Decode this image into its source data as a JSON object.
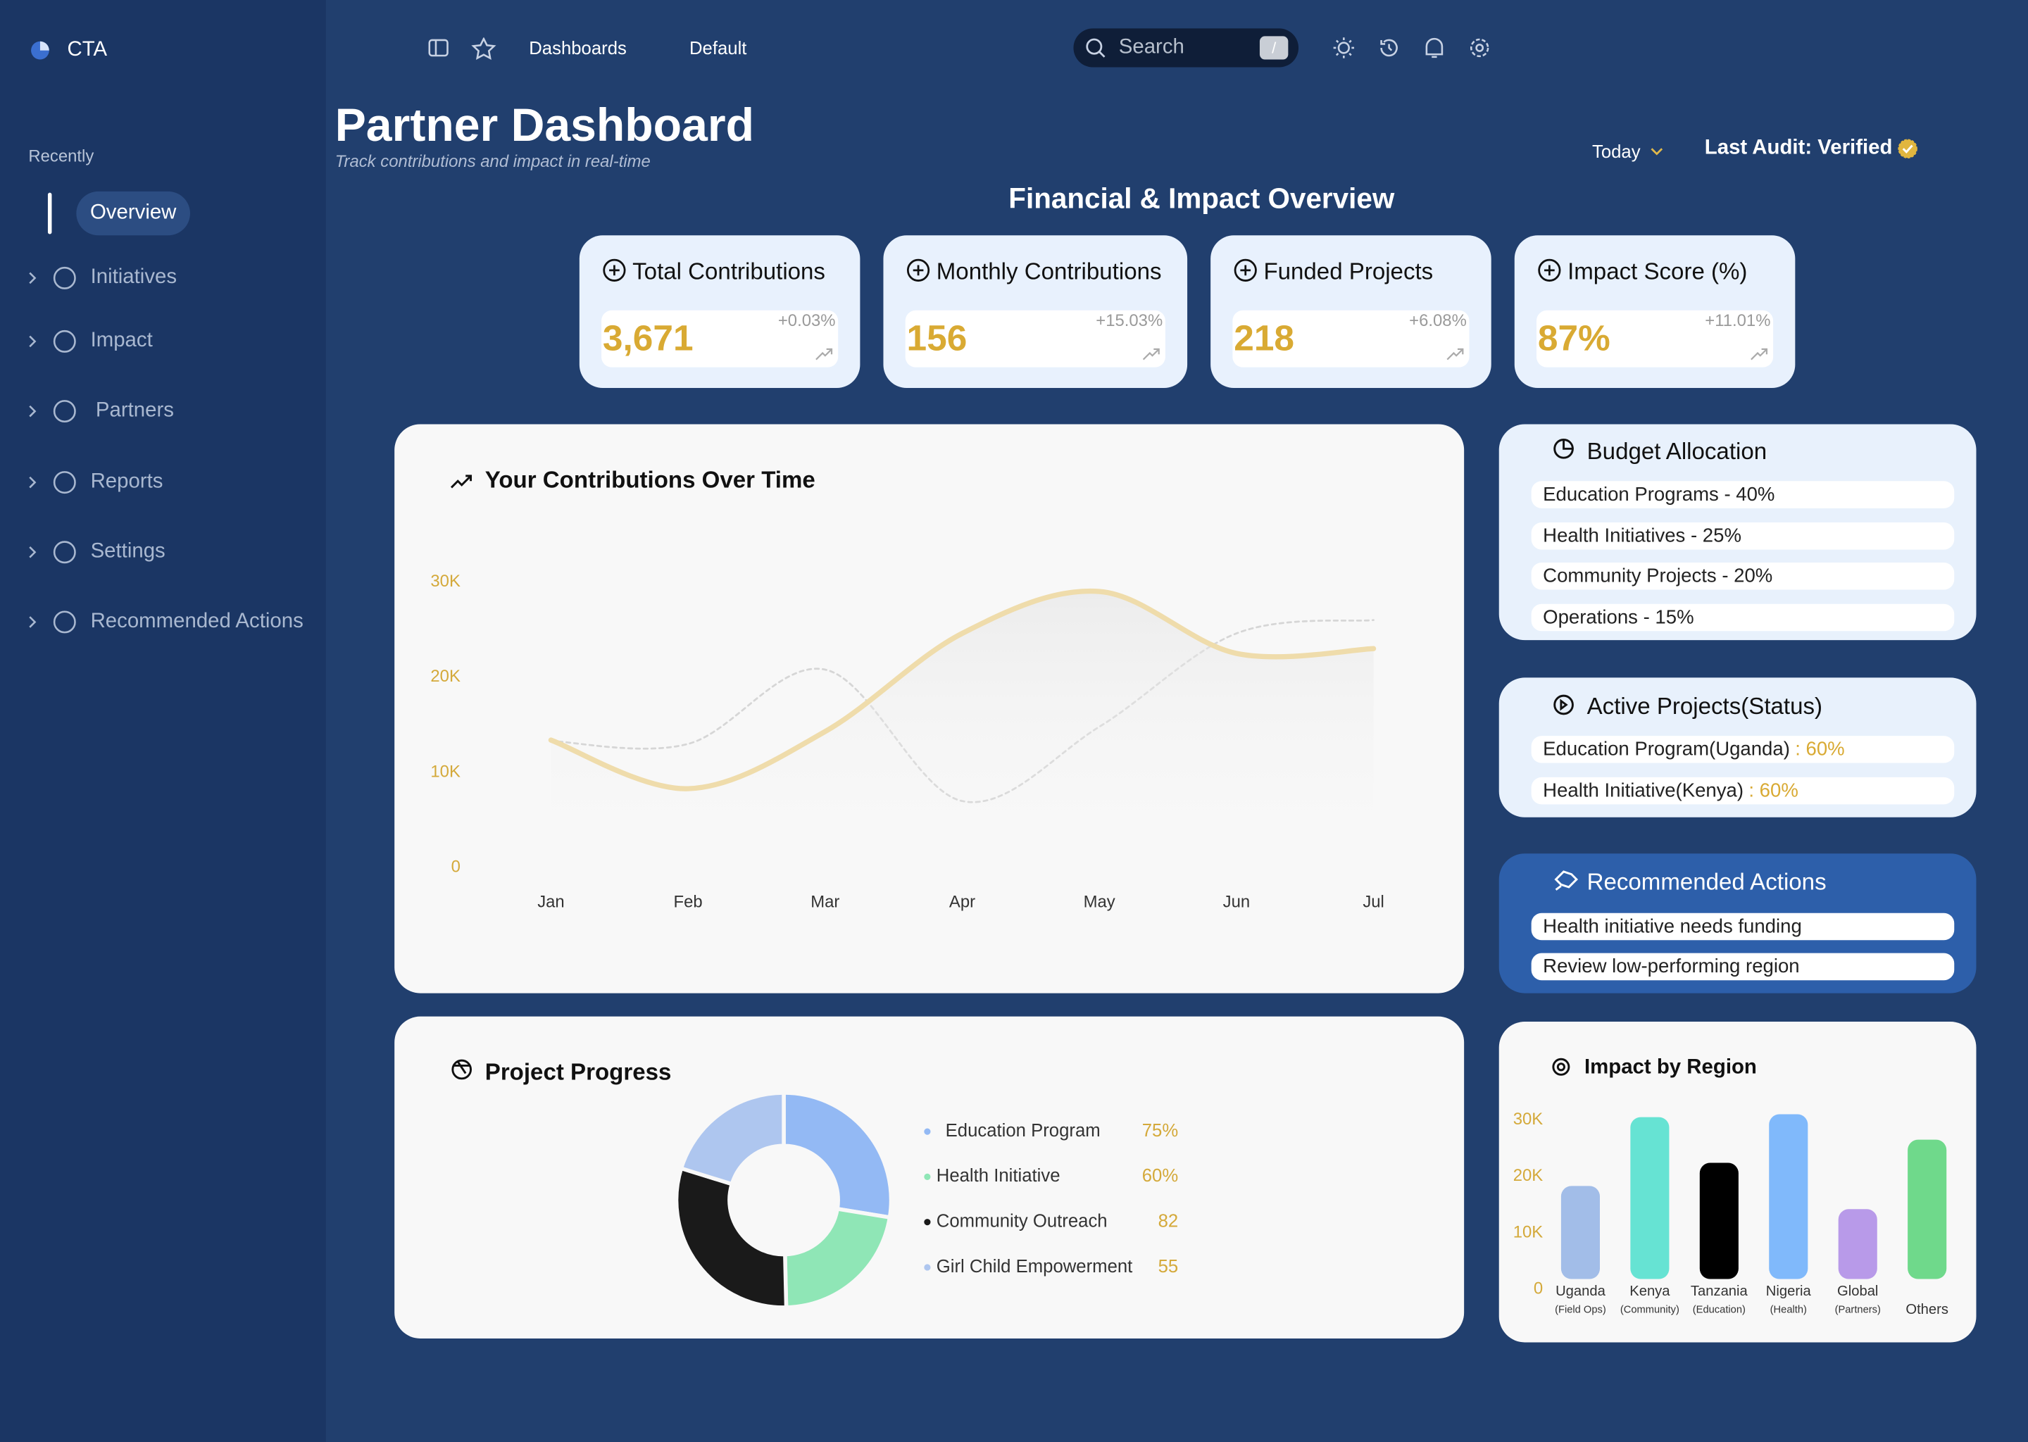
{
  "app": {
    "name": "CTA"
  },
  "sidebar": {
    "section": "Recently",
    "active": "Overview",
    "items": [
      "Initiatives",
      "Impact",
      "Partners",
      "Reports",
      "Settings",
      "Recommended Actions"
    ]
  },
  "topbar": {
    "breadcrumbs": [
      "Dashboards",
      "Default"
    ],
    "search": "Search",
    "shortcut": "/"
  },
  "header": {
    "title": "Partner Dashboard",
    "subtitle": "Track contributions and impact in real-time",
    "period": "Today",
    "audit": "Last Audit: Verified",
    "section_title": "Financial & Impact Overview"
  },
  "kpis": [
    {
      "title": "Total Contributions",
      "value": "3,671",
      "change": "+0.03%"
    },
    {
      "title": "Monthly Contributions",
      "value": "156",
      "change": "+15.03%"
    },
    {
      "title": "Funded Projects",
      "value": "218",
      "change": "+6.08%"
    },
    {
      "title": "Impact Score (%)",
      "value": "87%",
      "change": "+11.01%"
    }
  ],
  "contributions": {
    "type": "line",
    "title": "Your Contributions Over Time",
    "categories": [
      "Jan",
      "Feb",
      "Mar",
      "Apr",
      "May",
      "Jun",
      "Jul"
    ],
    "series": [
      {
        "color": "#efdcab",
        "values": [
          13400,
          8300,
          14300,
          24600,
          29000,
          22500,
          23000
        ]
      },
      {
        "color": "#d6d6d6",
        "values": [
          13300,
          13000,
          20800,
          7000,
          14800,
          24600,
          26000
        ]
      }
    ],
    "ylim": [
      0,
      32000
    ],
    "yticks": [
      0,
      {
        "value": 10000,
        "label": "10K"
      },
      {
        "value": 20000,
        "label": "20K"
      },
      {
        "value": 30000,
        "label": "30K"
      }
    ]
  },
  "budget": {
    "title": "Budget Allocation",
    "items": [
      "Education Programs - 40%",
      "Health Initiatives - 25%",
      "Community Projects - 20%",
      "Operations - 15%"
    ]
  },
  "active_projects": {
    "title": "Active Projects(Status)",
    "items": [
      {
        "name": "Education Program(Uganda)",
        "status": ": 60%"
      },
      {
        "name": "Health Initiative(Kenya)",
        "status": ": 60%"
      }
    ]
  },
  "recommended": {
    "title": "Recommended Actions",
    "items": [
      "Health initiative needs funding",
      "Review low-performing region"
    ]
  },
  "progress": {
    "type": "pie",
    "title": "Project Progress",
    "categories": [
      "Education Program",
      "Health Initiative",
      "Community Outreach",
      "Girl Child Empowerment"
    ],
    "values": [
      75,
      60,
      82,
      55
    ],
    "value_labels": [
      "75%",
      "60%",
      "82",
      "55"
    ],
    "colors": [
      "#93b9f4",
      "#8fe6b6",
      "#1a1a1a",
      "#aec6ef"
    ]
  },
  "region": {
    "type": "bar",
    "title": "Impact by Region",
    "categories": [
      "Uganda",
      "Kenya",
      "Tanzania",
      "Nigeria",
      "Global",
      "Others"
    ],
    "sublabels": [
      "(Field Ops)",
      "(Community)",
      "(Education)",
      "(Health)",
      "(Partners)",
      null
    ],
    "values": [
      18300,
      30500,
      22400,
      31000,
      14200,
      26500
    ],
    "colors": [
      "#a2bde8",
      "#66e3d3",
      "#000000",
      "#80b9fb",
      "#b89ae9",
      "#6fd98b"
    ],
    "ylim": [
      0,
      32000
    ],
    "yticks": [
      0,
      {
        "value": 10000,
        "label": "10K"
      },
      {
        "value": 20000,
        "label": "20K"
      },
      {
        "value": 30000,
        "label": "30K"
      }
    ]
  }
}
